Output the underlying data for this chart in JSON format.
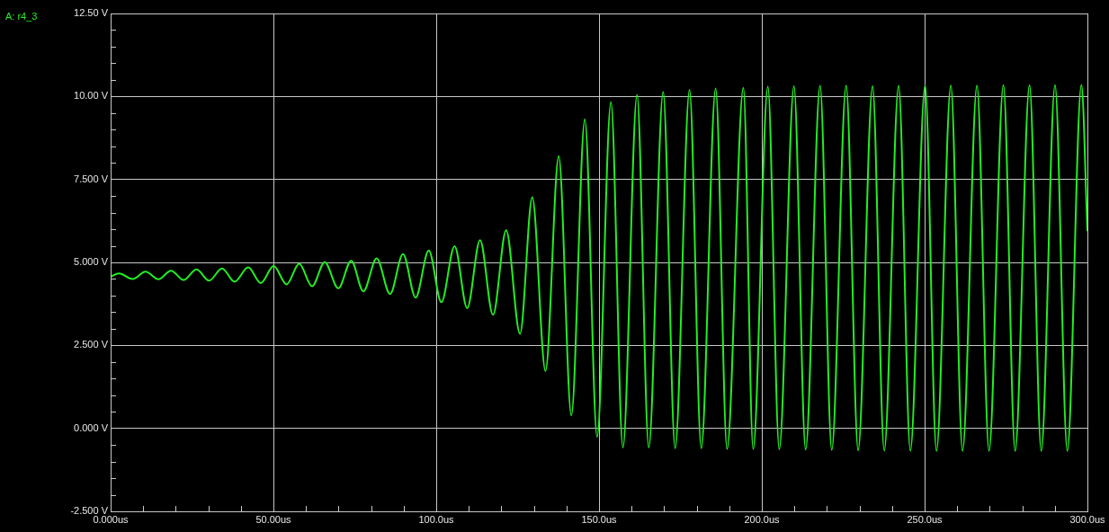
{
  "chart_data": {
    "type": "line",
    "xlim": [
      0,
      300
    ],
    "ylim": [
      -2.5,
      12.5
    ],
    "xticks": [
      {
        "value": 0,
        "label": "0.000us"
      },
      {
        "value": 10,
        "label": null
      },
      {
        "value": 20,
        "label": null
      },
      {
        "value": 30,
        "label": null
      },
      {
        "value": 40,
        "label": null
      },
      {
        "value": 50,
        "label": "50.00us"
      },
      {
        "value": 60,
        "label": null
      },
      {
        "value": 70,
        "label": null
      },
      {
        "value": 80,
        "label": null
      },
      {
        "value": 90,
        "label": null
      },
      {
        "value": 100,
        "label": "100.0us"
      },
      {
        "value": 110,
        "label": null
      },
      {
        "value": 120,
        "label": null
      },
      {
        "value": 130,
        "label": null
      },
      {
        "value": 140,
        "label": null
      },
      {
        "value": 150,
        "label": "150.0us"
      },
      {
        "value": 160,
        "label": null
      },
      {
        "value": 170,
        "label": null
      },
      {
        "value": 180,
        "label": null
      },
      {
        "value": 190,
        "label": null
      },
      {
        "value": 200,
        "label": "200.0us"
      },
      {
        "value": 210,
        "label": null
      },
      {
        "value": 220,
        "label": null
      },
      {
        "value": 230,
        "label": null
      },
      {
        "value": 240,
        "label": null
      },
      {
        "value": 250,
        "label": "250.0us"
      },
      {
        "value": 260,
        "label": null
      },
      {
        "value": 270,
        "label": null
      },
      {
        "value": 280,
        "label": null
      },
      {
        "value": 290,
        "label": null
      },
      {
        "value": 300,
        "label": "300.0us"
      }
    ],
    "yticks": [
      {
        "value": -2.5,
        "label": "-2.500 V"
      },
      {
        "value": -2,
        "label": null
      },
      {
        "value": -1.5,
        "label": null
      },
      {
        "value": -1,
        "label": null
      },
      {
        "value": -0.5,
        "label": null
      },
      {
        "value": 0,
        "label": "0.000 V"
      },
      {
        "value": 0.5,
        "label": null
      },
      {
        "value": 1,
        "label": null
      },
      {
        "value": 1.5,
        "label": null
      },
      {
        "value": 2,
        "label": null
      },
      {
        "value": 2.5,
        "label": "2.500 V"
      },
      {
        "value": 3,
        "label": null
      },
      {
        "value": 3.5,
        "label": null
      },
      {
        "value": 4,
        "label": null
      },
      {
        "value": 4.5,
        "label": null
      },
      {
        "value": 5,
        "label": "5.000 V"
      },
      {
        "value": 5.5,
        "label": null
      },
      {
        "value": 6,
        "label": null
      },
      {
        "value": 6.5,
        "label": null
      },
      {
        "value": 7,
        "label": null
      },
      {
        "value": 7.5,
        "label": "7.500 V"
      },
      {
        "value": 8,
        "label": null
      },
      {
        "value": 8.5,
        "label": null
      },
      {
        "value": 9,
        "label": null
      },
      {
        "value": 9.5,
        "label": null
      },
      {
        "value": 10,
        "label": "10.00 V"
      },
      {
        "value": 10.5,
        "label": null
      },
      {
        "value": 11,
        "label": null
      },
      {
        "value": 11.5,
        "label": null
      },
      {
        "value": 12,
        "label": null
      },
      {
        "value": 12.5,
        "label": "12.50 V"
      }
    ],
    "grid": true,
    "legend": "top left",
    "marker": "none",
    "line_style": "solid",
    "series": [
      {
        "name": "A: r4_3",
        "color": "#22ee22",
        "x": [
          0,
          2.57,
          6.75,
          10.73,
          14.68,
          18.55,
          22.42,
          26.38,
          30.25,
          34.2,
          38.07,
          42.25,
          46.12,
          50.07,
          54.05,
          57.92,
          61.87,
          65.75,
          69.92,
          73.9,
          77.63,
          81.7,
          85.82,
          89.8,
          93.67,
          97.71,
          101.58,
          105.64,
          109.51,
          113.46,
          117.44,
          121.48,
          125.74,
          129.5,
          133.56,
          137.63,
          141.5,
          145.65,
          149.41,
          153.67,
          157.34,
          161.68,
          165.28,
          169.7,
          173.38,
          177.8,
          181.4,
          185.82,
          189.33,
          194.33,
          197.35,
          201.85,
          205.36,
          209.87,
          213.46,
          217.89,
          221.48,
          225.9,
          229.58,
          234.01,
          237.6,
          242.02,
          245.62,
          250.15,
          253.64,
          258.06,
          261.65,
          266.08,
          269.78,
          274.2,
          277.8,
          282.22,
          285.82,
          290.05,
          293.83,
          298.15,
          300
        ],
        "values": [
          4.57,
          4.67,
          4.5,
          4.72,
          4.49,
          4.75,
          4.47,
          4.79,
          4.45,
          4.82,
          4.42,
          4.85,
          4.38,
          4.89,
          4.34,
          4.96,
          4.28,
          5.01,
          4.22,
          5.05,
          4.13,
          5.12,
          4.05,
          5.25,
          3.94,
          5.36,
          3.8,
          5.49,
          3.62,
          5.67,
          3.42,
          5.97,
          2.85,
          6.96,
          1.73,
          8.2,
          0.39,
          9.31,
          -0.26,
          9.83,
          -0.58,
          10.05,
          -0.58,
          10.14,
          -0.6,
          10.2,
          -0.6,
          10.24,
          -0.62,
          10.26,
          -0.62,
          10.29,
          -0.63,
          10.31,
          -0.64,
          10.32,
          -0.65,
          10.33,
          -0.66,
          10.31,
          -0.67,
          10.32,
          -0.67,
          10.33,
          -0.68,
          10.33,
          -0.68,
          10.33,
          -0.68,
          10.34,
          -0.68,
          10.34,
          -0.68,
          10.34,
          -0.68,
          10.35,
          5.96
        ]
      }
    ]
  }
}
